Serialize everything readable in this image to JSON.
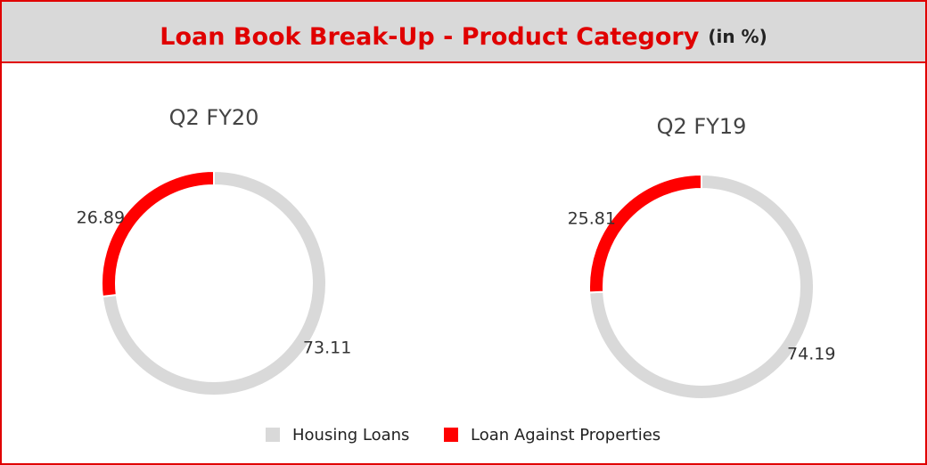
{
  "header": {
    "title": "Loan Book Break-Up - Product Category",
    "unit": "(in %)"
  },
  "chart_data": [
    {
      "type": "donut",
      "title": "Q2 FY20",
      "categories": [
        "Housing Loans",
        "Loan Against Properties"
      ],
      "values": [
        73.11,
        26.89
      ],
      "colors": [
        "#d9d9d9",
        "#ff0000"
      ]
    },
    {
      "type": "donut",
      "title": "Q2 FY19",
      "categories": [
        "Housing Loans",
        "Loan Against Properties"
      ],
      "values": [
        74.19,
        25.81
      ],
      "colors": [
        "#d9d9d9",
        "#ff0000"
      ]
    }
  ]
}
